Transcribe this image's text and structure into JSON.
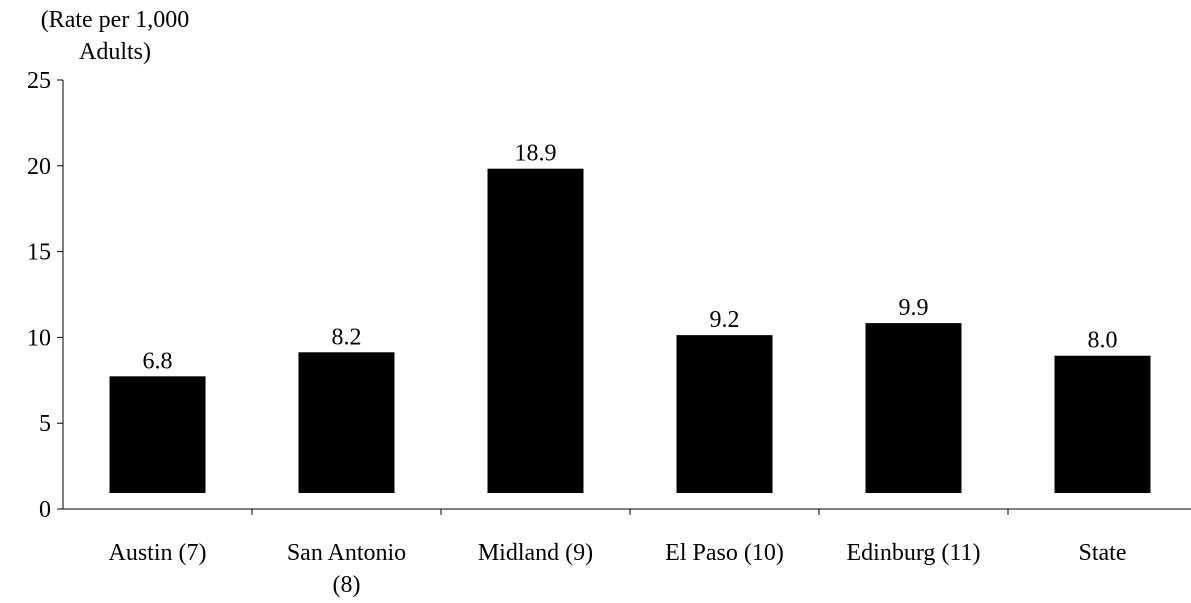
{
  "chart_data": {
    "type": "bar",
    "title": "",
    "ylabel_line1": "(Rate per 1,000",
    "ylabel_line2": "Adults)",
    "xlabel": "",
    "categories": [
      [
        "Austin (7)"
      ],
      [
        "San Antonio",
        "(8)"
      ],
      [
        "Midland (9)"
      ],
      [
        "El Paso (10)"
      ],
      [
        "Edinburg (11)"
      ],
      [
        "State"
      ]
    ],
    "values": [
      6.8,
      8.2,
      18.9,
      9.2,
      9.9,
      8.0
    ],
    "value_labels": [
      "6.8",
      "8.2",
      "18.9",
      "9.2",
      "9.9",
      "8.0"
    ],
    "ylim": [
      0,
      25
    ],
    "yticks": [
      0,
      5,
      10,
      15,
      20,
      25
    ],
    "bar_color": "#000000",
    "grid": false,
    "legend": "none"
  }
}
